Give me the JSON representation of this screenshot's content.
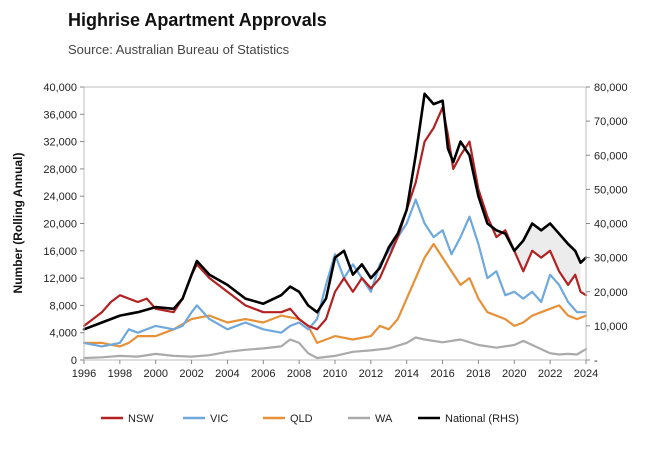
{
  "chart_data": {
    "type": "line",
    "title": "Highrise Apartment Approvals",
    "subtitle": "Source: Australian Bureau of Statistics",
    "ylabel": "Number (Rolling Annual)",
    "xlabel": "",
    "xlim": [
      1996,
      2024
    ],
    "ylim": [
      0,
      40000
    ],
    "y2lim": [
      0,
      80000
    ],
    "xticks": [
      "1996",
      "1998",
      "2000",
      "2002",
      "2004",
      "2006",
      "2008",
      "2010",
      "2012",
      "2014",
      "2016",
      "2018",
      "2020",
      "2022",
      "2024"
    ],
    "yticks": [
      "0",
      "4,000",
      "8,000",
      "12,000",
      "16,000",
      "20,000",
      "24,000",
      "28,000",
      "32,000",
      "36,000",
      "40,000"
    ],
    "y2ticks": [
      "-",
      "10,000",
      "20,000",
      "30,000",
      "40,000",
      "50,000",
      "60,000",
      "70,000",
      "80,000"
    ],
    "legend_position": "bottom",
    "series": [
      {
        "name": "NSW",
        "color": "#b22222",
        "axis": "left",
        "points": [
          [
            1996,
            5000
          ],
          [
            1997,
            7000
          ],
          [
            1997.5,
            8500
          ],
          [
            1998,
            9500
          ],
          [
            1999,
            8500
          ],
          [
            1999.5,
            9000
          ],
          [
            2000,
            7500
          ],
          [
            2001,
            7000
          ],
          [
            2001.5,
            9000
          ],
          [
            2002,
            12500
          ],
          [
            2002.3,
            14000
          ],
          [
            2003,
            12000
          ],
          [
            2004,
            10000
          ],
          [
            2005,
            8000
          ],
          [
            2006,
            7000
          ],
          [
            2007,
            7000
          ],
          [
            2007.5,
            7500
          ],
          [
            2008,
            6000
          ],
          [
            2008.5,
            5000
          ],
          [
            2009,
            4500
          ],
          [
            2009.5,
            6000
          ],
          [
            2010,
            10000
          ],
          [
            2010.5,
            12000
          ],
          [
            2011,
            10000
          ],
          [
            2011.5,
            12000
          ],
          [
            2012,
            10500
          ],
          [
            2012.5,
            12000
          ],
          [
            2013,
            15000
          ],
          [
            2013.5,
            18000
          ],
          [
            2014,
            22000
          ],
          [
            2014.5,
            26000
          ],
          [
            2015,
            32000
          ],
          [
            2015.5,
            34000
          ],
          [
            2016,
            37000
          ],
          [
            2016.3,
            33000
          ],
          [
            2016.6,
            28000
          ],
          [
            2017,
            30000
          ],
          [
            2017.5,
            32000
          ],
          [
            2018,
            25000
          ],
          [
            2018.5,
            21000
          ],
          [
            2019,
            18000
          ],
          [
            2019.5,
            19000
          ],
          [
            2020,
            16000
          ],
          [
            2020.5,
            13000
          ],
          [
            2021,
            16000
          ],
          [
            2021.5,
            15000
          ],
          [
            2022,
            16000
          ],
          [
            2022.5,
            13000
          ],
          [
            2023,
            11000
          ],
          [
            2023.4,
            12500
          ],
          [
            2023.7,
            10000
          ],
          [
            2024,
            9500
          ]
        ]
      },
      {
        "name": "VIC",
        "color": "#6fa8dc",
        "axis": "left",
        "points": [
          [
            1996,
            2500
          ],
          [
            1997,
            2000
          ],
          [
            1998,
            2500
          ],
          [
            1998.5,
            4500
          ],
          [
            1999,
            4000
          ],
          [
            2000,
            5000
          ],
          [
            2001,
            4500
          ],
          [
            2001.5,
            5000
          ],
          [
            2002,
            7000
          ],
          [
            2002.3,
            8000
          ],
          [
            2003,
            6000
          ],
          [
            2004,
            4500
          ],
          [
            2005,
            5500
          ],
          [
            2006,
            4500
          ],
          [
            2007,
            4000
          ],
          [
            2007.5,
            5000
          ],
          [
            2008,
            5500
          ],
          [
            2008.5,
            4500
          ],
          [
            2009,
            6000
          ],
          [
            2009.5,
            11000
          ],
          [
            2010,
            15500
          ],
          [
            2010.5,
            12000
          ],
          [
            2011,
            14000
          ],
          [
            2011.5,
            12000
          ],
          [
            2012,
            10000
          ],
          [
            2012.5,
            14000
          ],
          [
            2013,
            16000
          ],
          [
            2013.5,
            18000
          ],
          [
            2014,
            20000
          ],
          [
            2014.5,
            23500
          ],
          [
            2015,
            20000
          ],
          [
            2015.5,
            18000
          ],
          [
            2016,
            19000
          ],
          [
            2016.5,
            15500
          ],
          [
            2017,
            18000
          ],
          [
            2017.5,
            21000
          ],
          [
            2018,
            17000
          ],
          [
            2018.5,
            12000
          ],
          [
            2019,
            13000
          ],
          [
            2019.5,
            9500
          ],
          [
            2020,
            10000
          ],
          [
            2020.5,
            9000
          ],
          [
            2021,
            10000
          ],
          [
            2021.5,
            8500
          ],
          [
            2022,
            12500
          ],
          [
            2022.5,
            11000
          ],
          [
            2023,
            8500
          ],
          [
            2023.5,
            7000
          ],
          [
            2024,
            7000
          ]
        ]
      },
      {
        "name": "QLD",
        "color": "#e69138",
        "axis": "left",
        "points": [
          [
            1996,
            2500
          ],
          [
            1997,
            2500
          ],
          [
            1998,
            2000
          ],
          [
            1998.5,
            2500
          ],
          [
            1999,
            3500
          ],
          [
            2000,
            3500
          ],
          [
            2001,
            4500
          ],
          [
            2002,
            6000
          ],
          [
            2003,
            6500
          ],
          [
            2004,
            5500
          ],
          [
            2005,
            6000
          ],
          [
            2006,
            5500
          ],
          [
            2007,
            6500
          ],
          [
            2008,
            6000
          ],
          [
            2008.5,
            5000
          ],
          [
            2009,
            2500
          ],
          [
            2010,
            3500
          ],
          [
            2011,
            3000
          ],
          [
            2012,
            3500
          ],
          [
            2012.5,
            5000
          ],
          [
            2013,
            4500
          ],
          [
            2013.5,
            6000
          ],
          [
            2014,
            9000
          ],
          [
            2014.5,
            12000
          ],
          [
            2015,
            15000
          ],
          [
            2015.5,
            17000
          ],
          [
            2016,
            15000
          ],
          [
            2016.5,
            13000
          ],
          [
            2017,
            11000
          ],
          [
            2017.5,
            12000
          ],
          [
            2018,
            9000
          ],
          [
            2018.5,
            7000
          ],
          [
            2019,
            6500
          ],
          [
            2019.5,
            6000
          ],
          [
            2020,
            5000
          ],
          [
            2020.5,
            5500
          ],
          [
            2021,
            6500
          ],
          [
            2021.5,
            7000
          ],
          [
            2022,
            7500
          ],
          [
            2022.5,
            8000
          ],
          [
            2023,
            6500
          ],
          [
            2023.5,
            6000
          ],
          [
            2024,
            6500
          ]
        ]
      },
      {
        "name": "WA",
        "color": "#aaaaaa",
        "axis": "left",
        "points": [
          [
            1996,
            300
          ],
          [
            1997,
            400
          ],
          [
            1998,
            600
          ],
          [
            1999,
            500
          ],
          [
            2000,
            900
          ],
          [
            2001,
            600
          ],
          [
            2002,
            500
          ],
          [
            2003,
            700
          ],
          [
            2004,
            1200
          ],
          [
            2005,
            1500
          ],
          [
            2006,
            1700
          ],
          [
            2007,
            2000
          ],
          [
            2007.5,
            3000
          ],
          [
            2008,
            2500
          ],
          [
            2008.5,
            1000
          ],
          [
            2009,
            300
          ],
          [
            2010,
            600
          ],
          [
            2011,
            1200
          ],
          [
            2012,
            1400
          ],
          [
            2013,
            1700
          ],
          [
            2014,
            2500
          ],
          [
            2014.5,
            3300
          ],
          [
            2015,
            3000
          ],
          [
            2016,
            2600
          ],
          [
            2017,
            3000
          ],
          [
            2018,
            2200
          ],
          [
            2019,
            1800
          ],
          [
            2020,
            2200
          ],
          [
            2020.5,
            2800
          ],
          [
            2021,
            2200
          ],
          [
            2022,
            1000
          ],
          [
            2022.5,
            800
          ],
          [
            2023,
            900
          ],
          [
            2023.5,
            800
          ],
          [
            2024,
            1600
          ]
        ]
      },
      {
        "name": "National (RHS)",
        "color": "#000000",
        "axis": "right",
        "points": [
          [
            1996,
            9000
          ],
          [
            1997,
            11000
          ],
          [
            1998,
            13000
          ],
          [
            1999,
            14000
          ],
          [
            2000,
            15500
          ],
          [
            2001,
            15000
          ],
          [
            2001.5,
            18000
          ],
          [
            2002,
            25000
          ],
          [
            2002.3,
            29000
          ],
          [
            2003,
            25000
          ],
          [
            2004,
            22000
          ],
          [
            2005,
            18000
          ],
          [
            2006,
            16500
          ],
          [
            2007,
            19000
          ],
          [
            2007.5,
            21500
          ],
          [
            2008,
            20000
          ],
          [
            2008.5,
            16000
          ],
          [
            2009,
            14000
          ],
          [
            2009.5,
            18000
          ],
          [
            2010,
            30000
          ],
          [
            2010.5,
            32000
          ],
          [
            2011,
            25000
          ],
          [
            2011.5,
            28000
          ],
          [
            2012,
            24000
          ],
          [
            2012.5,
            27000
          ],
          [
            2013,
            33000
          ],
          [
            2013.5,
            37000
          ],
          [
            2014,
            44000
          ],
          [
            2014.5,
            60000
          ],
          [
            2015,
            78000
          ],
          [
            2015.5,
            75000
          ],
          [
            2016,
            76000
          ],
          [
            2016.3,
            62000
          ],
          [
            2016.6,
            58000
          ],
          [
            2017,
            64000
          ],
          [
            2017.5,
            60000
          ],
          [
            2018,
            48000
          ],
          [
            2018.5,
            40000
          ],
          [
            2019,
            38000
          ],
          [
            2019.5,
            37000
          ],
          [
            2020,
            32000
          ],
          [
            2020.5,
            35000
          ],
          [
            2021,
            40000
          ],
          [
            2021.5,
            38000
          ],
          [
            2022,
            40000
          ],
          [
            2022.5,
            37000
          ],
          [
            2023,
            34000
          ],
          [
            2023.4,
            32000
          ],
          [
            2023.7,
            28500
          ],
          [
            2024,
            30000
          ]
        ]
      }
    ]
  }
}
